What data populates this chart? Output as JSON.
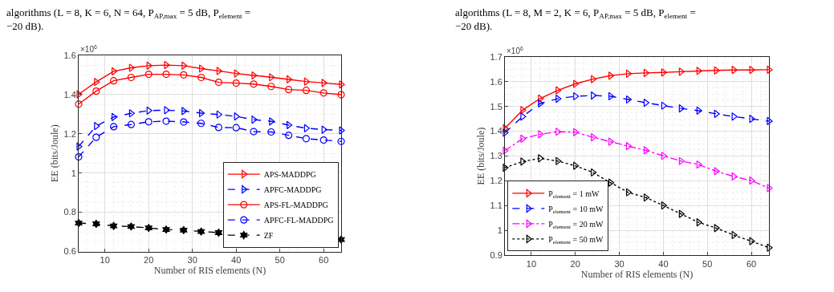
{
  "chart_data": [
    {
      "type": "line",
      "xlabel": "Number of RIS elements (N)",
      "ylabel": "EE (bits/Joule)",
      "annotations": [
        "algorithms (L = 8, K = 6, N = 64, P$_{AP,max}$ = 5 dB, P$_{element}$ =\n−20 dB).",
        "×10$^{6}$"
      ],
      "x": [
        4,
        8,
        12,
        16,
        20,
        24,
        28,
        32,
        36,
        40,
        44,
        48,
        52,
        56,
        60,
        64
      ],
      "xlim": [
        4,
        64
      ],
      "xticks": [
        10,
        20,
        30,
        40,
        50,
        60
      ],
      "ylim": [
        0.6,
        1.6
      ],
      "yticks": [
        0.6,
        0.8,
        1,
        1.2,
        1.4,
        1.6
      ],
      "grid": true,
      "legend": "bottom right",
      "series": [
        {
          "name": "APS-MADDPG",
          "color": "#ff0000",
          "marker": "triangle",
          "line_style": "solid",
          "values": [
            1.401,
            1.464,
            1.518,
            1.536,
            1.547,
            1.55,
            1.547,
            1.532,
            1.52,
            1.507,
            1.497,
            1.488,
            1.477,
            1.466,
            1.459,
            1.451
          ]
        },
        {
          "name": "APFC-MADDPG",
          "color": "#0000ff",
          "marker": "triangle",
          "line_style": "dashed",
          "values": [
            1.135,
            1.239,
            1.285,
            1.304,
            1.318,
            1.32,
            1.316,
            1.305,
            1.298,
            1.288,
            1.272,
            1.263,
            1.244,
            1.228,
            1.221,
            1.217
          ]
        },
        {
          "name": "APS-FL-MADDPG",
          "color": "#ff0000",
          "marker": "circle",
          "line_style": "solid",
          "values": [
            1.351,
            1.417,
            1.47,
            1.487,
            1.503,
            1.503,
            1.5,
            1.487,
            1.462,
            1.458,
            1.453,
            1.441,
            1.425,
            1.421,
            1.408,
            1.399
          ]
        },
        {
          "name": "APFC-FL-MADDPG",
          "color": "#0000ff",
          "marker": "circle",
          "line_style": "dashed",
          "values": [
            1.082,
            1.182,
            1.236,
            1.247,
            1.261,
            1.264,
            1.26,
            1.253,
            1.232,
            1.231,
            1.211,
            1.209,
            1.192,
            1.175,
            1.168,
            1.161
          ]
        },
        {
          "name": "ZF",
          "color": "#000000",
          "marker": "cross",
          "line_style": "dashed",
          "values": [
            0.745,
            0.741,
            0.73,
            0.727,
            0.72,
            0.712,
            0.709,
            0.702,
            0.696,
            null,
            null,
            null,
            null,
            null,
            null,
            0.661
          ]
        }
      ]
    },
    {
      "type": "line",
      "xlabel": "Number of RIS elements (N)",
      "ylabel": "EE (bits/Joule)",
      "annotations": [
        "algorithms (L = 8, M = 2, K = 6, P$_{AP,max}$ = 5 dB, P$_{element}$ =\n−20 dB).",
        "×10$^{6}$"
      ],
      "x": [
        4,
        8,
        12,
        16,
        20,
        24,
        28,
        32,
        36,
        40,
        44,
        48,
        52,
        56,
        60,
        64
      ],
      "xlim": [
        4,
        64
      ],
      "xticks": [
        10,
        20,
        30,
        40,
        50,
        60
      ],
      "ylim": [
        0.9,
        1.7
      ],
      "yticks": [
        0.9,
        1,
        1.1,
        1.2,
        1.3,
        1.4,
        1.5,
        1.6,
        1.7
      ],
      "grid": true,
      "legend": "bottom left",
      "series": [
        {
          "name": "P$_{element}$ = 1 mW",
          "color": "#ff0000",
          "marker": "triangle",
          "line_style": "solid",
          "values": [
            1.412,
            1.485,
            1.532,
            1.565,
            1.591,
            1.61,
            1.624,
            1.632,
            1.635,
            1.637,
            1.64,
            1.643,
            1.645,
            1.647,
            1.647,
            1.648
          ]
        },
        {
          "name": "P$_{element}$ = 10 mW",
          "color": "#0000ff",
          "marker": "triangle",
          "line_style": "dashed",
          "values": [
            1.394,
            1.459,
            1.512,
            1.531,
            1.541,
            1.544,
            1.541,
            1.528,
            1.515,
            1.503,
            1.492,
            1.483,
            1.47,
            1.459,
            1.45,
            1.441
          ]
        },
        {
          "name": "P$_{element}$ = 20 mW",
          "color": "#ff00ff",
          "marker": "triangle",
          "line_style": "dashdot",
          "values": [
            1.322,
            1.37,
            1.388,
            1.398,
            1.396,
            1.376,
            1.358,
            1.34,
            1.323,
            1.301,
            1.28,
            1.266,
            1.239,
            1.218,
            1.201,
            1.171
          ]
        },
        {
          "name": "P$_{element}$ = 50 mW",
          "color": "#000000",
          "marker": "triangle",
          "line_style": "dotted",
          "values": [
            1.253,
            1.278,
            1.291,
            1.28,
            1.261,
            1.234,
            1.193,
            1.154,
            1.133,
            1.101,
            1.067,
            1.033,
            1.01,
            0.982,
            0.957,
            0.931
          ]
        }
      ]
    }
  ]
}
